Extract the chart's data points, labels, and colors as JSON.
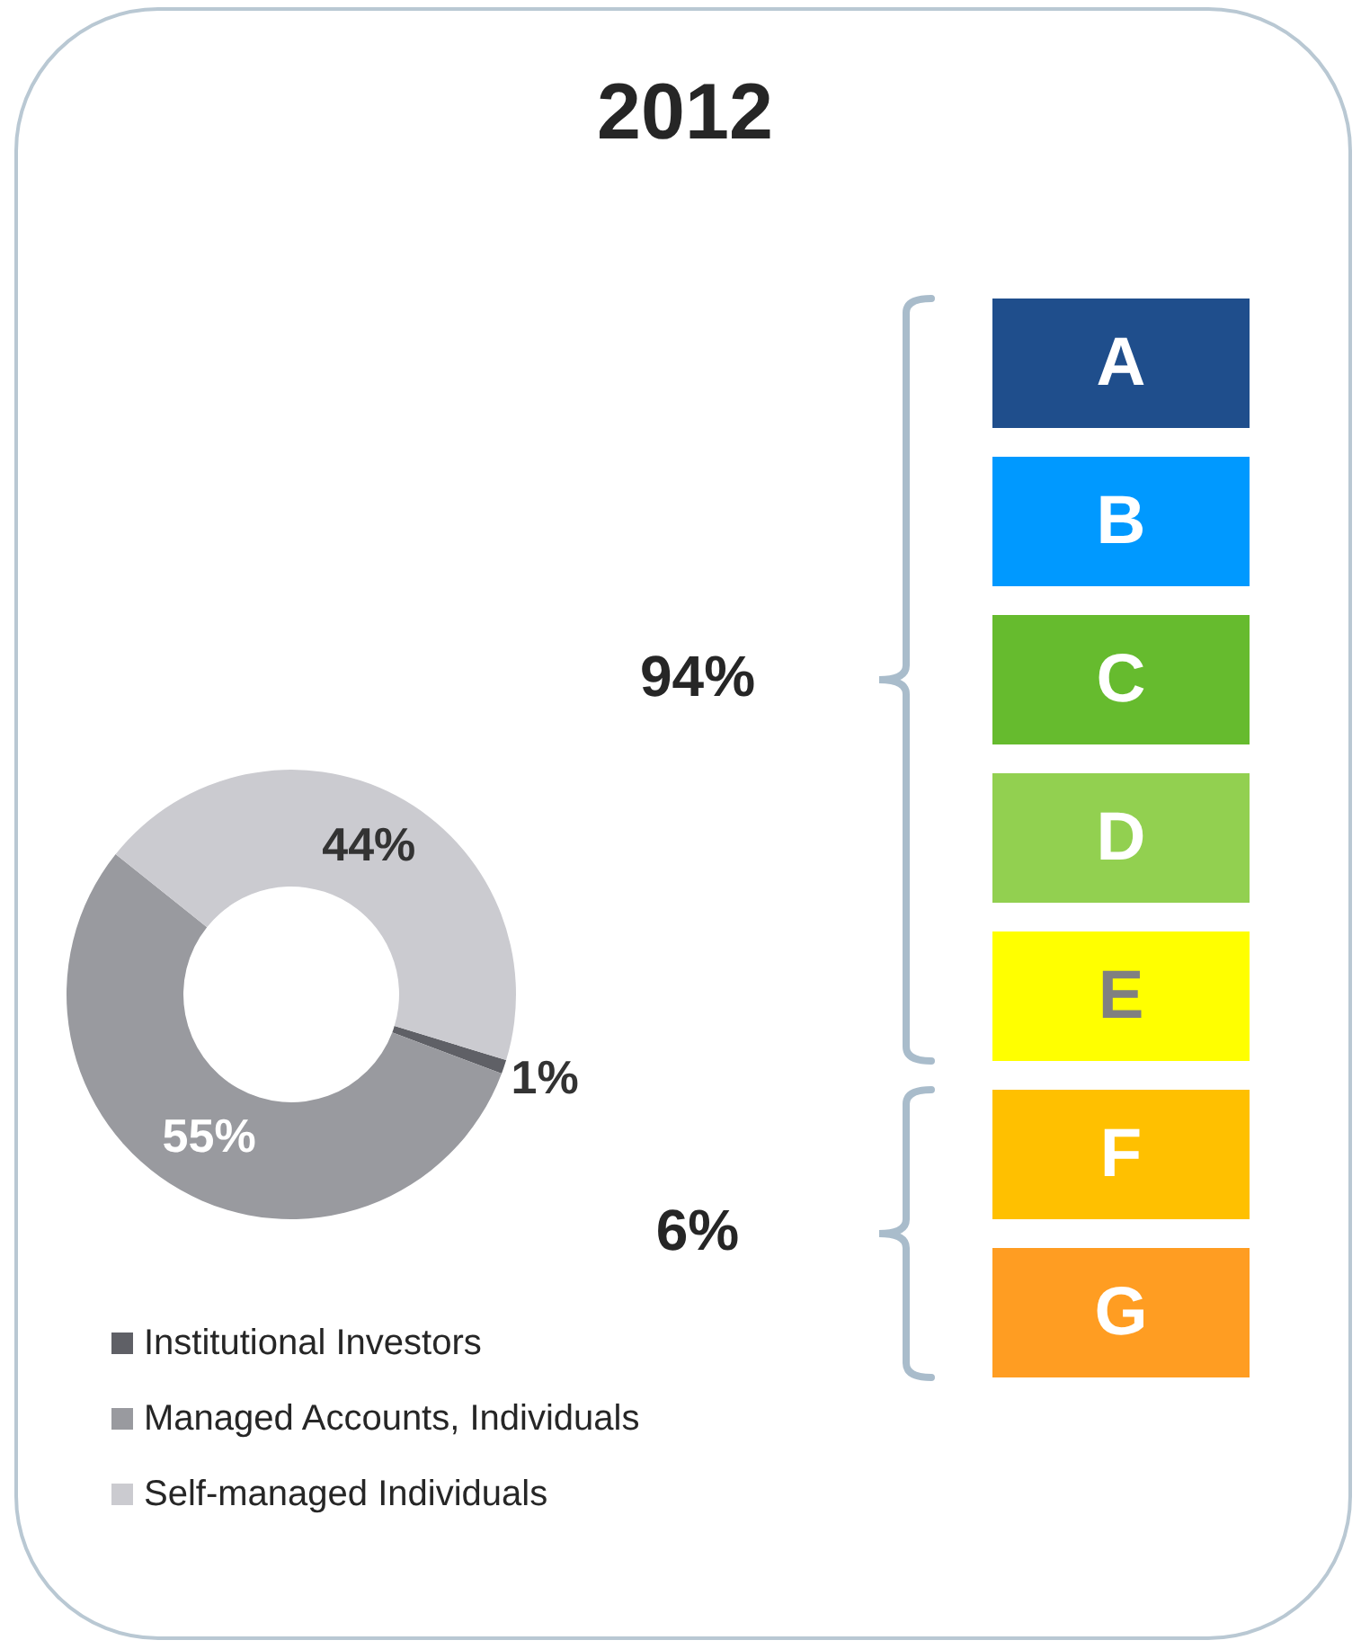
{
  "chart_data": [
    {
      "type": "donut",
      "title": "2012",
      "categories": [
        "Institutional Investors",
        "Managed Accounts, Individuals",
        "Self-managed Individuals"
      ],
      "values": [
        1,
        55,
        44
      ],
      "value_labels": [
        "1%",
        "55%",
        "44%"
      ],
      "colors": [
        "#5f6066",
        "#999a9f",
        "#cbcbd0"
      ],
      "data_labels": true,
      "legend": "bottom"
    },
    {
      "type": "other",
      "categories": [
        "A",
        "B",
        "C",
        "D",
        "E"
      ],
      "colors": [
        "#1f4e8c",
        "#0099ff",
        "#66bb2e",
        "#92d050",
        "#ffff00"
      ],
      "annotations": [
        "94%"
      ]
    },
    {
      "type": "other",
      "categories": [
        "F",
        "G"
      ],
      "colors": [
        "#ffc000",
        "#ff9d22"
      ],
      "annotations": [
        "6%"
      ]
    }
  ]
}
